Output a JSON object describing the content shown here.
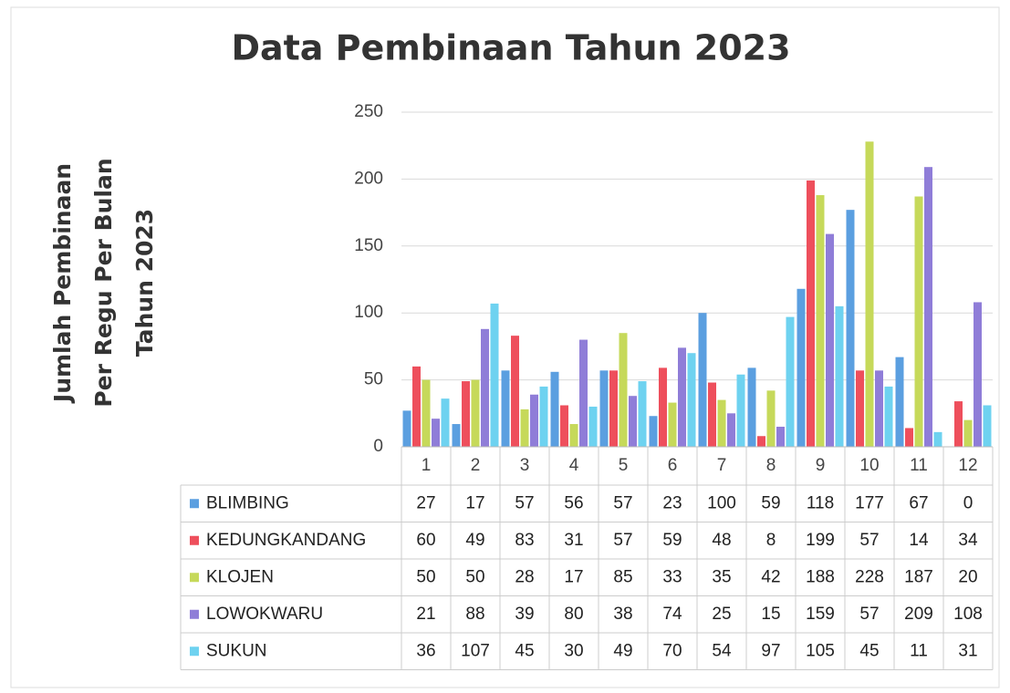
{
  "chart_data": {
    "type": "bar",
    "title": "Data Pembinaan Tahun 2023",
    "ylabel": [
      "Jumlah Pembinaan",
      "Per Regu Per Bulan",
      "Tahun 2023"
    ],
    "categories": [
      "1",
      "2",
      "3",
      "4",
      "5",
      "6",
      "7",
      "8",
      "9",
      "10",
      "11",
      "12"
    ],
    "series": [
      {
        "name": "BLIMBING",
        "color": "#5b9fe0",
        "values": [
          27,
          17,
          57,
          56,
          57,
          23,
          100,
          59,
          118,
          177,
          67,
          0
        ]
      },
      {
        "name": "KEDUNGKANDANG",
        "color": "#ee4f5c",
        "values": [
          60,
          49,
          83,
          31,
          57,
          59,
          48,
          8,
          199,
          57,
          14,
          34
        ]
      },
      {
        "name": "KLOJEN",
        "color": "#c6d95a",
        "values": [
          50,
          50,
          28,
          17,
          85,
          33,
          35,
          42,
          188,
          228,
          187,
          20
        ]
      },
      {
        "name": "LOWOKWARU",
        "color": "#8f7dd8",
        "values": [
          21,
          88,
          39,
          80,
          38,
          74,
          25,
          15,
          159,
          57,
          209,
          108
        ]
      },
      {
        "name": "SUKUN",
        "color": "#6ed2f0",
        "values": [
          36,
          107,
          45,
          30,
          49,
          70,
          54,
          97,
          105,
          45,
          11,
          31
        ]
      }
    ],
    "ylim": [
      0,
      250
    ],
    "yticks": [
      0,
      50,
      100,
      150,
      200,
      250
    ],
    "grid": true
  }
}
